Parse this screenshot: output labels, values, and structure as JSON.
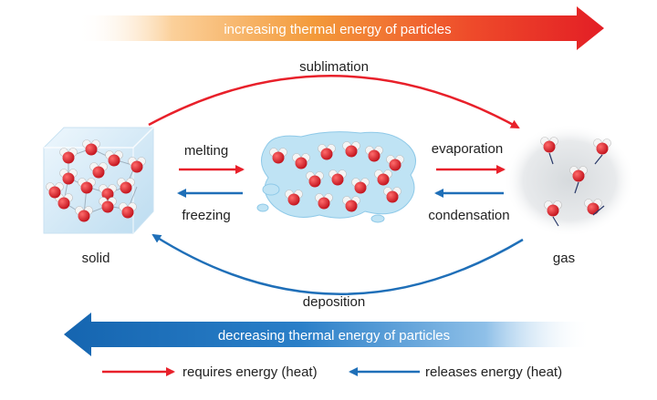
{
  "colors": {
    "heat": "#e8202a",
    "cool": "#1f6fb8",
    "oxygen": "#d4161c",
    "hydrogen": "#f2f2f2"
  },
  "banners": {
    "top": "increasing thermal energy of particles",
    "bottom": "decreasing thermal energy of particles"
  },
  "states": {
    "solid": "solid",
    "gas": "gas"
  },
  "transitions": {
    "sublimation": "sublimation",
    "deposition": "deposition",
    "melting": "melting",
    "freezing": "freezing",
    "evaporation": "evaporation",
    "condensation": "condensation"
  },
  "legend": {
    "requires": "requires energy (heat)",
    "releases": "releases energy (heat)"
  }
}
